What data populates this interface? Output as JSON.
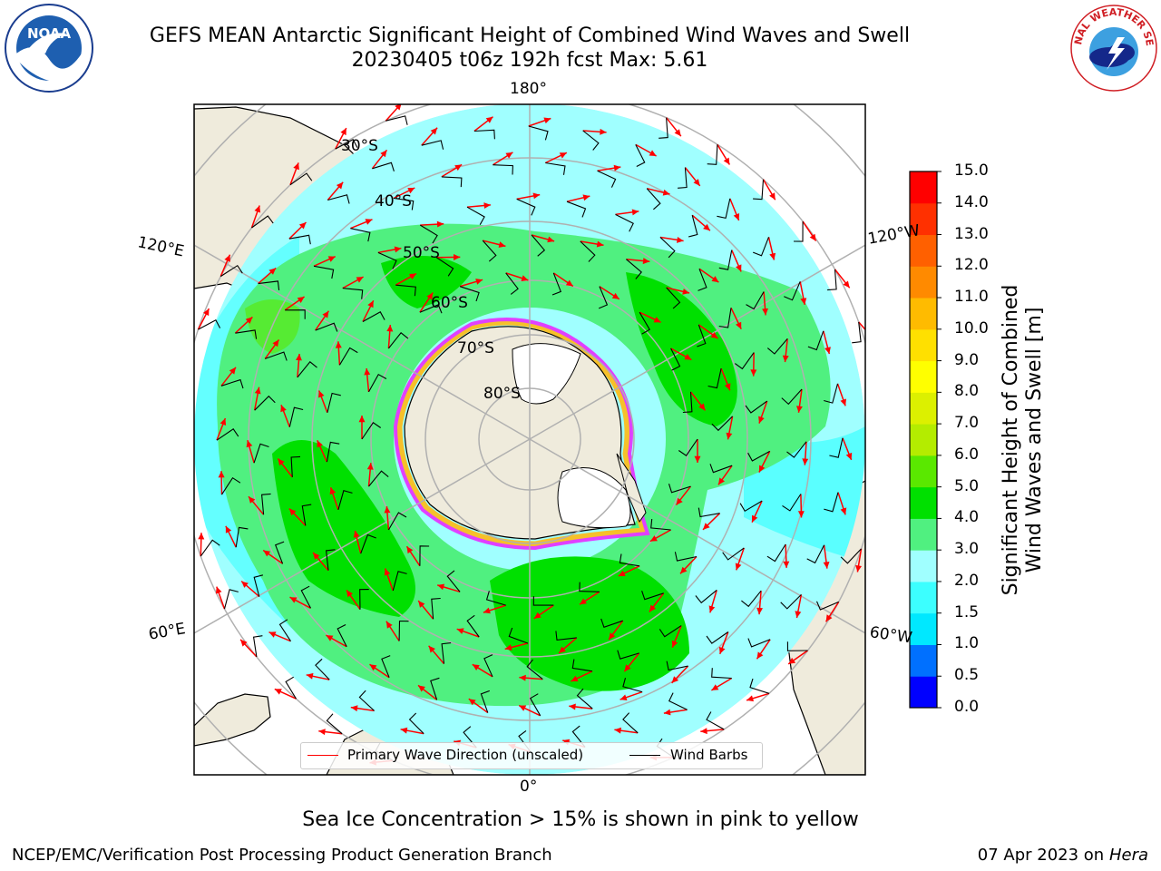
{
  "title": {
    "line1": "GEFS MEAN Antarctic Significant Height of Combined Wind Waves and Swell",
    "line2": "20230405 t06z 192h fcst   Max: 5.61"
  },
  "logos": {
    "left": "NOAA",
    "right": "NATIONAL WEATHER SERVICE"
  },
  "map": {
    "projection": "south-polar-stereographic",
    "lon_labels": [
      "180°",
      "120°E",
      "120°W",
      "60°E",
      "60°W",
      "0°"
    ],
    "lat_labels": [
      "30°S",
      "40°S",
      "50°S",
      "60°S",
      "70°S",
      "80°S"
    ],
    "colors": {
      "land": "#efebdc",
      "ice_shelf": "#ffffff",
      "grid": "#b0b0b0",
      "ice_edge": "#e040ff",
      "ice_edge_yellow": "#f6c02a"
    }
  },
  "colorbar": {
    "title_line1": "Significant Height of Combined",
    "title_line2": "Wind Waves and Swell [m]",
    "ticks": [
      "0.0",
      "0.5",
      "1.0",
      "1.5",
      "2.0",
      "3.0",
      "4.0",
      "5.0",
      "6.0",
      "7.0",
      "8.0",
      "9.0",
      "10.0",
      "11.0",
      "12.0",
      "13.0",
      "14.0",
      "15.0"
    ],
    "colors": [
      "#0000ff",
      "#0070ff",
      "#00e8ff",
      "#3cffff",
      "#a0ffff",
      "#50f080",
      "#00e000",
      "#5ae800",
      "#b4ec00",
      "#dcf000",
      "#ffff00",
      "#ffe000",
      "#ffbb00",
      "#ff8a00",
      "#ff6000",
      "#ff3000",
      "#ff0000"
    ]
  },
  "legend": {
    "wave_label": "Primary Wave Direction (unscaled)",
    "wave_color": "#ff0000",
    "wind_label": "Wind Barbs",
    "wind_color": "#000000"
  },
  "ice_note": "Sea Ice Concentration > 15% is shown in pink to yellow",
  "footer": {
    "left": "NCEP/EMC/Verification Post Processing Product Generation Branch",
    "right_date": "07 Apr 2023 on ",
    "right_host": "Hera"
  }
}
